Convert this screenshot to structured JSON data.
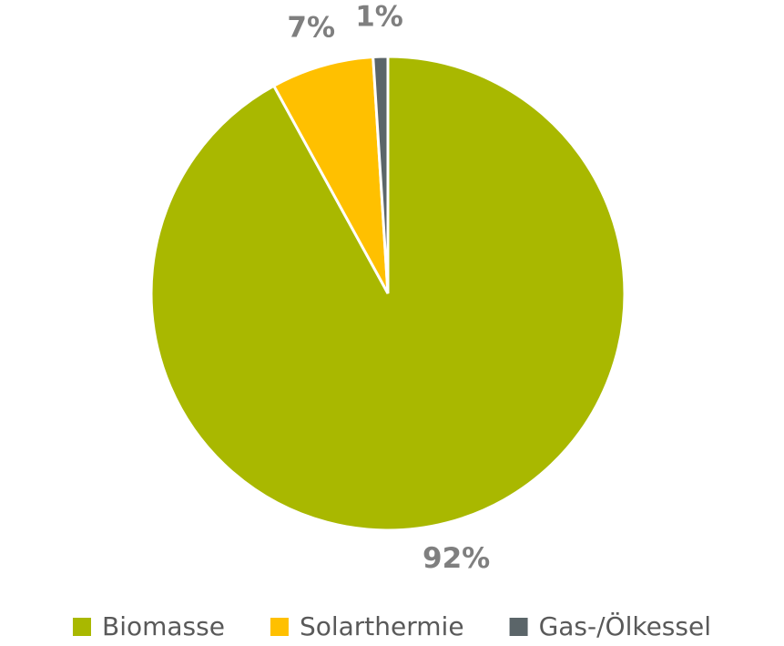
{
  "chart_data": {
    "type": "pie",
    "categories": [
      "Biomasse",
      "Solarthermie",
      "Gas-/Ölkessel"
    ],
    "values": [
      92,
      7,
      1
    ],
    "value_labels": [
      "92%",
      "7%",
      "1%"
    ],
    "colors": [
      "#a9b800",
      "#ffc000",
      "#5b6569"
    ],
    "legend": "bottom"
  }
}
